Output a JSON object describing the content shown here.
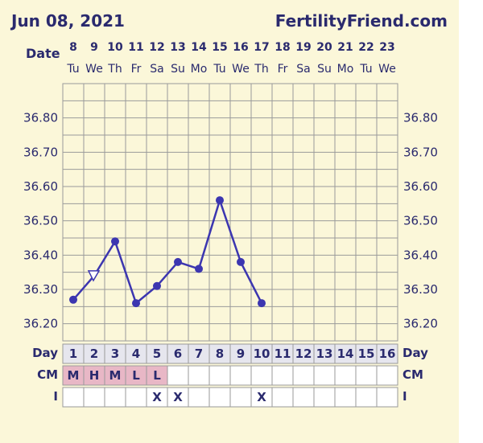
{
  "header": {
    "date_title": "Jun 08, 2021",
    "site": "FertilityFriend.com"
  },
  "labels": {
    "date": "Date",
    "day": "Day",
    "cm": "CM",
    "i": "I"
  },
  "colors": {
    "line": "#3c36b0",
    "grid": "#9a9a9a",
    "text": "#2a2a6e",
    "cm_fill": "#e8b7c6",
    "day_fill": "#e6e6ee",
    "plot_bg": "#fbf7d9"
  },
  "chart_data": {
    "type": "line",
    "dates": [
      "8",
      "9",
      "10",
      "11",
      "12",
      "13",
      "14",
      "15",
      "16",
      "17",
      "18",
      "19",
      "20",
      "21",
      "22",
      "23"
    ],
    "weekdays": [
      "Tu",
      "We",
      "Th",
      "Fr",
      "Sa",
      "Su",
      "Mo",
      "Tu",
      "We",
      "Th",
      "Fr",
      "Sa",
      "Su",
      "Mo",
      "Tu",
      "We"
    ],
    "cycle_days": [
      "1",
      "2",
      "3",
      "4",
      "5",
      "6",
      "7",
      "8",
      "9",
      "10",
      "11",
      "12",
      "13",
      "14",
      "15",
      "16"
    ],
    "y_ticks": [
      "36.80",
      "36.70",
      "36.60",
      "36.50",
      "36.40",
      "36.30",
      "36.20"
    ],
    "ylim": [
      36.15,
      36.9
    ],
    "series": [
      {
        "values": [
          36.27,
          36.34,
          36.44,
          36.26,
          36.31,
          36.38,
          36.36,
          36.56,
          36.38,
          36.26,
          null,
          null,
          null,
          null,
          null,
          null
        ],
        "markers": [
          "dot",
          "triangle",
          "dot",
          "dot",
          "dot",
          "dot",
          "dot",
          "dot",
          "dot",
          "dot",
          null,
          null,
          null,
          null,
          null,
          null
        ]
      }
    ],
    "cm": [
      "M",
      "H",
      "M",
      "L",
      "L",
      "",
      "",
      "",
      "",
      "",
      "",
      "",
      "",
      "",
      "",
      ""
    ],
    "intercourse": [
      "",
      "",
      "",
      "",
      "X",
      "X",
      "",
      "",
      "",
      "X",
      "",
      "",
      "",
      "",
      "",
      ""
    ]
  }
}
